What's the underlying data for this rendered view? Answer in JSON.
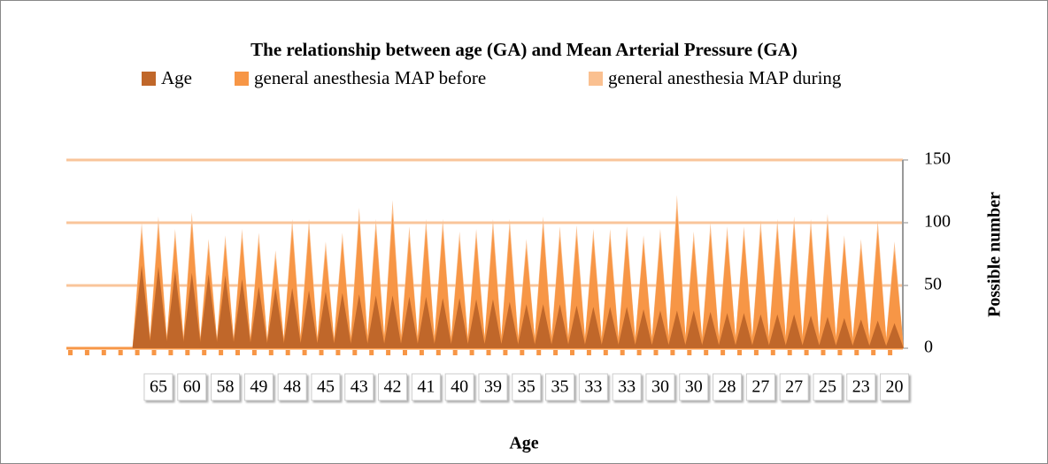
{
  "chart_data": {
    "type": "spike",
    "title": "The relationship between age (GA) and Mean Arterial Pressure (GA)",
    "x_label": "Age",
    "y_label": "Possible number",
    "categories": [
      null,
      null,
      null,
      null,
      null,
      "65",
      null,
      "60",
      null,
      "58",
      null,
      "49",
      null,
      "48",
      null,
      "45",
      null,
      "43",
      null,
      "42",
      null,
      "41",
      null,
      "40",
      null,
      "39",
      null,
      "35",
      null,
      "35",
      null,
      "33",
      null,
      "33",
      null,
      "30",
      null,
      "30",
      null,
      "28",
      null,
      "27",
      null,
      "27",
      null,
      "25",
      null,
      "23",
      null,
      "20"
    ],
    "series": [
      {
        "name": "Age",
        "color": "#c0672a",
        "values": [
          null,
          null,
          null,
          null,
          66,
          65,
          62,
          60,
          59,
          58,
          55,
          49,
          48,
          48,
          46,
          45,
          44,
          43,
          42,
          42,
          41,
          41,
          40,
          40,
          39,
          39,
          37,
          35,
          35,
          35,
          34,
          33,
          33,
          33,
          31,
          30,
          30,
          30,
          29,
          28,
          28,
          27,
          27,
          27,
          26,
          25,
          24,
          23,
          22,
          20
        ]
      },
      {
        "name": "general anesthesia MAP before",
        "color": "#f79646",
        "values": [
          null,
          null,
          null,
          null,
          92,
          96,
          88,
          99,
          80,
          83,
          88,
          85,
          72,
          95,
          95,
          78,
          85,
          103,
          95,
          108,
          89,
          95,
          95,
          86,
          88,
          95,
          95,
          80,
          97,
          89,
          90,
          88,
          88,
          90,
          84,
          88,
          112,
          86,
          92,
          90,
          90,
          94,
          95,
          97,
          95,
          98,
          84,
          80,
          94,
          78
        ]
      },
      {
        "name": "general anesthesia MAP during",
        "color": "#fac090",
        "values": [
          null,
          null,
          null,
          null,
          100,
          105,
          95,
          108,
          87,
          90,
          95,
          92,
          78,
          103,
          103,
          85,
          92,
          112,
          103,
          118,
          97,
          103,
          103,
          93,
          95,
          103,
          103,
          87,
          105,
          97,
          98,
          95,
          95,
          97,
          90,
          95,
          122,
          93,
          100,
          97,
          97,
          102,
          103,
          105,
          103,
          107,
          90,
          87,
          102,
          85
        ]
      }
    ],
    "ylim": [
      0,
      150
    ],
    "yticks": [
      0,
      50,
      100,
      150
    ],
    "grid": true
  }
}
